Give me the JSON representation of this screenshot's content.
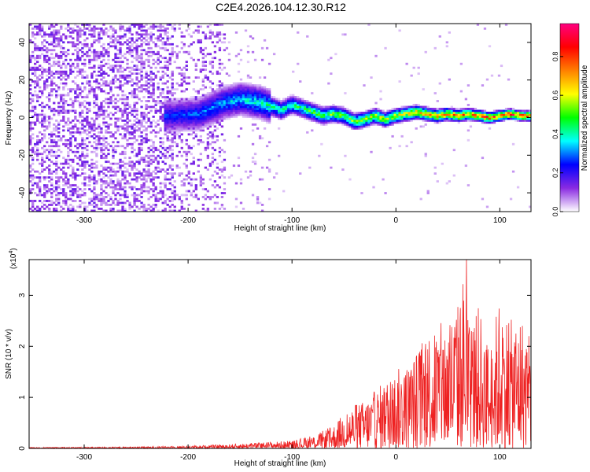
{
  "figure": {
    "title": "C2E4.2026.104.12.30.R12"
  },
  "chart_data": [
    {
      "type": "heatmap",
      "title": "C2E4.2026.104.12.30.R12",
      "xlabel": "Height of straight line (km)",
      "ylabel": "Frequency (Hz)",
      "xlim": [
        -353,
        130
      ],
      "ylim": [
        -50,
        50
      ],
      "x_ticks": [
        -300,
        -200,
        -100,
        0,
        100
      ],
      "y_ticks": [
        -40,
        -20,
        0,
        20,
        40
      ],
      "colorbar": {
        "label": "Normalized spectral amplitude",
        "range": [
          0.0,
          0.97
        ],
        "ticks": [
          "0.0",
          "0.2",
          "0.4",
          "0.6",
          "0.8"
        ],
        "colormap": [
          "#ffffff",
          "#8a2be2",
          "#0000ff",
          "#00ffff",
          "#00ff00",
          "#ffff00",
          "#ff8000",
          "#ff0000",
          "#ff0080"
        ]
      },
      "features": {
        "noise_region_x": [
          -353,
          -165
        ],
        "signal_frequency_track": {
          "x": [
            -215,
            -190,
            -165,
            -150,
            -140,
            -130,
            -120,
            -110,
            -100,
            -90,
            -80,
            -70,
            -60,
            -50,
            -40,
            -30,
            -20,
            -10,
            0,
            10,
            20,
            30,
            40,
            50,
            60,
            70,
            80,
            90,
            100,
            110,
            120,
            130
          ],
          "freq": [
            1,
            2,
            8,
            10,
            9,
            8,
            6,
            4,
            7,
            5,
            3,
            1,
            2,
            1,
            -2,
            -1,
            1,
            -1,
            1,
            2,
            3,
            2,
            1,
            2,
            1,
            2,
            1,
            0,
            1,
            2,
            1,
            1
          ]
        }
      }
    },
    {
      "type": "line",
      "xlabel": "Height of straight line (km)",
      "ylabel": "SNR (10 * v/v)",
      "multiplier": "(x10^4)",
      "multiplier_base": "(x10",
      "multiplier_exp": "4",
      "xlim": [
        -353,
        130
      ],
      "ylim": [
        0,
        3.7
      ],
      "x_ticks": [
        -300,
        -200,
        -100,
        0,
        100
      ],
      "y_ticks": [
        0,
        1,
        2,
        3
      ],
      "color": "#ee2222",
      "series": [
        {
          "name": "SNR",
          "envelope_x": [
            -353,
            -250,
            -200,
            -160,
            -130,
            -100,
            -80,
            -60,
            -50,
            -40,
            -30,
            -20,
            -10,
            0,
            10,
            20,
            30,
            40,
            50,
            60,
            65,
            70,
            80,
            90,
            100,
            110,
            120,
            130
          ],
          "envelope_y": [
            0.02,
            0.03,
            0.05,
            0.08,
            0.12,
            0.15,
            0.25,
            0.45,
            0.7,
            0.85,
            0.95,
            1.15,
            1.35,
            1.55,
            1.65,
            1.9,
            2.4,
            2.4,
            2.6,
            2.9,
            3.5,
            2.5,
            2.8,
            2.0,
            3.0,
            2.5,
            2.7,
            2.1
          ],
          "peak": {
            "x": 68,
            "y": 3.7
          }
        }
      ]
    }
  ]
}
